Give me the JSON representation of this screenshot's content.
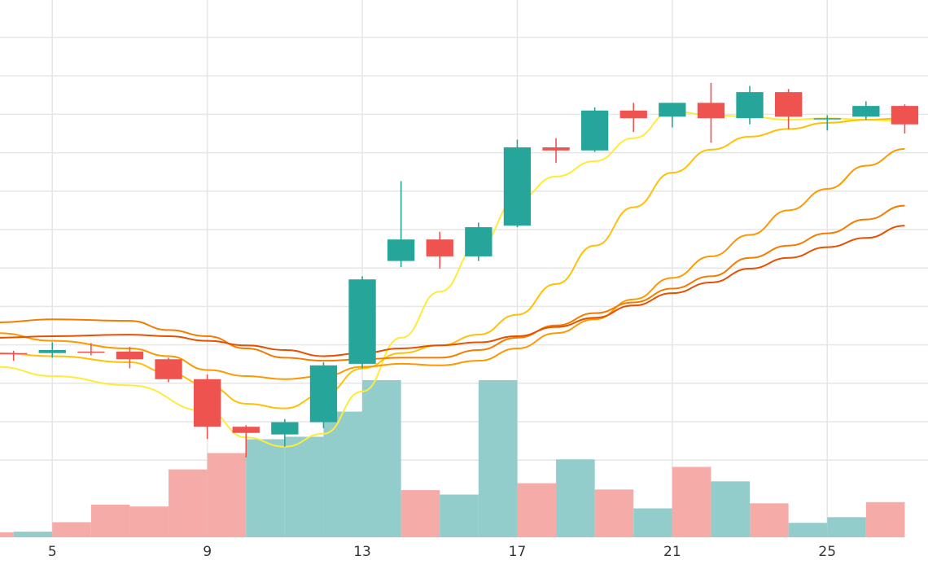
{
  "chart_data": {
    "type": "candlestick",
    "x_ticks": [
      "5",
      "9",
      "13",
      "17",
      "21",
      "25"
    ],
    "x_tick_values": [
      5,
      9,
      13,
      17,
      21,
      25
    ],
    "xlim": [
      3.65,
      27.6
    ],
    "ylim": [
      -24,
      46
    ],
    "grid": true,
    "colors": {
      "up": "#26a69a",
      "down": "#ef5350",
      "up_volume": "#92cdcc",
      "down_volume": "#f5aba8",
      "ma_lines": [
        "#ffeb3b",
        "#ffc107",
        "#ff9800",
        "#f57c00",
        "#e65100"
      ]
    },
    "candles": [
      {
        "x": 4,
        "open": 0.0,
        "high": 0.3,
        "low": -1.0,
        "close": 0.0,
        "dir": "down"
      },
      {
        "x": 5,
        "open": 0.0,
        "high": 1.4,
        "low": -0.6,
        "close": 0.4,
        "dir": "up"
      },
      {
        "x": 6,
        "open": 0.2,
        "high": 1.3,
        "low": -0.3,
        "close": 0.2,
        "dir": "down"
      },
      {
        "x": 7,
        "open": 0.2,
        "high": 0.8,
        "low": -2.0,
        "close": -0.8,
        "dir": "down"
      },
      {
        "x": 8,
        "open": -0.8,
        "high": -0.6,
        "low": -3.8,
        "close": -3.4,
        "dir": "down"
      },
      {
        "x": 9,
        "open": -3.4,
        "high": -2.8,
        "low": -11.2,
        "close": -9.6,
        "dir": "down"
      },
      {
        "x": 10,
        "open": -9.6,
        "high": -9.4,
        "low": -13.6,
        "close": -10.4,
        "dir": "down"
      },
      {
        "x": 11,
        "open": -10.6,
        "high": -8.6,
        "low": -12.2,
        "close": -9.0,
        "dir": "up"
      },
      {
        "x": 12,
        "open": -9.0,
        "high": -1.2,
        "low": -9.8,
        "close": -1.6,
        "dir": "up"
      },
      {
        "x": 13,
        "open": -1.4,
        "high": 10.0,
        "low": -2.0,
        "close": 9.6,
        "dir": "up"
      },
      {
        "x": 14,
        "open": 12.0,
        "high": 22.4,
        "low": 11.2,
        "close": 14.8,
        "dir": "up"
      },
      {
        "x": 15,
        "open": 14.8,
        "high": 15.8,
        "low": 11.0,
        "close": 12.6,
        "dir": "down"
      },
      {
        "x": 16,
        "open": 12.6,
        "high": 17.0,
        "low": 12.0,
        "close": 16.4,
        "dir": "up"
      },
      {
        "x": 17,
        "open": 16.6,
        "high": 27.8,
        "low": 16.4,
        "close": 26.8,
        "dir": "up"
      },
      {
        "x": 18,
        "open": 26.8,
        "high": 28.0,
        "low": 24.8,
        "close": 26.4,
        "dir": "down"
      },
      {
        "x": 19,
        "open": 26.4,
        "high": 32.0,
        "low": 26.2,
        "close": 31.6,
        "dir": "up"
      },
      {
        "x": 20,
        "open": 31.6,
        "high": 32.6,
        "low": 28.8,
        "close": 30.6,
        "dir": "down"
      },
      {
        "x": 21,
        "open": 30.8,
        "high": 32.6,
        "low": 29.4,
        "close": 32.6,
        "dir": "up"
      },
      {
        "x": 22,
        "open": 32.6,
        "high": 35.2,
        "low": 27.4,
        "close": 30.6,
        "dir": "down"
      },
      {
        "x": 23,
        "open": 30.6,
        "high": 34.8,
        "low": 29.8,
        "close": 34.0,
        "dir": "up"
      },
      {
        "x": 24,
        "open": 34.0,
        "high": 34.4,
        "low": 29.2,
        "close": 30.8,
        "dir": "down"
      },
      {
        "x": 25,
        "open": 30.6,
        "high": 31.0,
        "low": 29.0,
        "close": 30.6,
        "dir": "up"
      },
      {
        "x": 26,
        "open": 30.8,
        "high": 32.8,
        "low": 30.4,
        "close": 32.2,
        "dir": "up"
      },
      {
        "x": 27,
        "open": 32.2,
        "high": 32.4,
        "low": 28.6,
        "close": 29.8,
        "dir": "down"
      }
    ],
    "volume": {
      "ylim": [
        0,
        100
      ],
      "bars": [
        {
          "x": 3.5,
          "v": 3.2,
          "dir": "down"
        },
        {
          "x": 4.5,
          "v": 3.6,
          "dir": "up"
        },
        {
          "x": 5.5,
          "v": 9.6,
          "dir": "down"
        },
        {
          "x": 6.5,
          "v": 20.8,
          "dir": "down"
        },
        {
          "x": 7.5,
          "v": 19.6,
          "dir": "down"
        },
        {
          "x": 8.5,
          "v": 43.2,
          "dir": "down"
        },
        {
          "x": 9.5,
          "v": 53.6,
          "dir": "down"
        },
        {
          "x": 10.5,
          "v": 62.4,
          "dir": "up"
        },
        {
          "x": 11.5,
          "v": 64.0,
          "dir": "up"
        },
        {
          "x": 12.5,
          "v": 80.0,
          "dir": "up"
        },
        {
          "x": 13.5,
          "v": 100.0,
          "dir": "up"
        },
        {
          "x": 14.5,
          "v": 30.0,
          "dir": "down"
        },
        {
          "x": 15.5,
          "v": 27.2,
          "dir": "up"
        },
        {
          "x": 16.5,
          "v": 100.0,
          "dir": "up"
        },
        {
          "x": 17.5,
          "v": 34.4,
          "dir": "down"
        },
        {
          "x": 18.5,
          "v": 49.6,
          "dir": "up"
        },
        {
          "x": 19.5,
          "v": 30.4,
          "dir": "down"
        },
        {
          "x": 20.5,
          "v": 18.4,
          "dir": "up"
        },
        {
          "x": 21.5,
          "v": 44.8,
          "dir": "down"
        },
        {
          "x": 22.5,
          "v": 35.6,
          "dir": "up"
        },
        {
          "x": 23.5,
          "v": 21.6,
          "dir": "down"
        },
        {
          "x": 24.5,
          "v": 9.2,
          "dir": "up"
        },
        {
          "x": 25.5,
          "v": 12.8,
          "dir": "up"
        },
        {
          "x": 26.5,
          "v": 22.4,
          "dir": "down"
        }
      ]
    },
    "moving_averages": [
      {
        "values": [
          [
            3.6,
            -1.8
          ],
          [
            5,
            -3
          ],
          [
            7,
            -4.2
          ],
          [
            9,
            -7.6
          ],
          [
            10,
            -11
          ],
          [
            11,
            -12.2
          ],
          [
            12,
            -10.5
          ],
          [
            13,
            -5
          ],
          [
            14,
            2
          ],
          [
            15,
            8
          ],
          [
            16,
            14
          ],
          [
            17,
            20
          ],
          [
            18,
            23
          ],
          [
            19,
            25
          ],
          [
            20,
            28
          ],
          [
            21,
            31.5
          ],
          [
            22,
            31
          ],
          [
            23,
            30.8
          ],
          [
            24,
            30.4
          ],
          [
            25,
            30.6
          ],
          [
            26,
            30.4
          ],
          [
            27,
            30.2
          ]
        ]
      },
      {
        "values": [
          [
            3.6,
            0
          ],
          [
            5,
            -0.4
          ],
          [
            7,
            -1.2
          ],
          [
            8,
            -2.6
          ],
          [
            9,
            -4.2
          ],
          [
            10,
            -6.6
          ],
          [
            11,
            -7.2
          ],
          [
            12,
            -5.4
          ],
          [
            13,
            -2
          ],
          [
            14,
            0
          ],
          [
            15,
            1
          ],
          [
            16,
            2.4
          ],
          [
            17,
            5
          ],
          [
            18,
            9
          ],
          [
            19,
            14
          ],
          [
            20,
            19
          ],
          [
            21,
            23.5
          ],
          [
            22,
            26.5
          ],
          [
            23,
            28.2
          ],
          [
            24,
            29.2
          ],
          [
            25,
            30
          ],
          [
            26,
            30.4
          ],
          [
            27,
            30.6
          ]
        ]
      },
      {
        "values": [
          [
            3.6,
            2.6
          ],
          [
            5,
            1.6
          ],
          [
            7,
            0.6
          ],
          [
            8,
            -0.4
          ],
          [
            9,
            -2.2
          ],
          [
            10,
            -3
          ],
          [
            11,
            -3.4
          ],
          [
            12,
            -3
          ],
          [
            13,
            -1.8
          ],
          [
            14,
            -1.4
          ],
          [
            15,
            -1.6
          ],
          [
            16,
            -1
          ],
          [
            17,
            0.6
          ],
          [
            18,
            2.6
          ],
          [
            19,
            4.4
          ],
          [
            20,
            7
          ],
          [
            21,
            9.8
          ],
          [
            22,
            12.6
          ],
          [
            23,
            15.4
          ],
          [
            24,
            18.6
          ],
          [
            25,
            21.4
          ],
          [
            26,
            24.4
          ],
          [
            27,
            26.6
          ]
        ]
      },
      {
        "values": [
          [
            3.6,
            4
          ],
          [
            5,
            4.4
          ],
          [
            7,
            4.2
          ],
          [
            8,
            3
          ],
          [
            9,
            2.2
          ],
          [
            10,
            0.6
          ],
          [
            11,
            -0.6
          ],
          [
            12,
            -1
          ],
          [
            13,
            -0.8
          ],
          [
            14,
            -0.6
          ],
          [
            15,
            -0.6
          ],
          [
            16,
            0.4
          ],
          [
            17,
            2
          ],
          [
            18,
            3.6
          ],
          [
            19,
            5.2
          ],
          [
            20,
            6.6
          ],
          [
            21,
            8.4
          ],
          [
            22,
            10
          ],
          [
            23,
            12.4
          ],
          [
            24,
            14
          ],
          [
            25,
            15.6
          ],
          [
            26,
            17.4
          ],
          [
            27,
            19.2
          ]
        ]
      },
      {
        "values": [
          [
            3.6,
            2
          ],
          [
            5,
            2.2
          ],
          [
            7,
            2.4
          ],
          [
            8,
            2.2
          ],
          [
            9,
            1.6
          ],
          [
            10,
            1
          ],
          [
            11,
            0.4
          ],
          [
            12,
            -0.4
          ],
          [
            13,
            0
          ],
          [
            14,
            0.6
          ],
          [
            15,
            1
          ],
          [
            16,
            1.4
          ],
          [
            17,
            2.2
          ],
          [
            18,
            3.4
          ],
          [
            19,
            4.6
          ],
          [
            20,
            6.2
          ],
          [
            21,
            7.8
          ],
          [
            22,
            9.2
          ],
          [
            23,
            11
          ],
          [
            24,
            12.4
          ],
          [
            25,
            13.8
          ],
          [
            26,
            15
          ],
          [
            27,
            16.6
          ]
        ]
      }
    ]
  }
}
